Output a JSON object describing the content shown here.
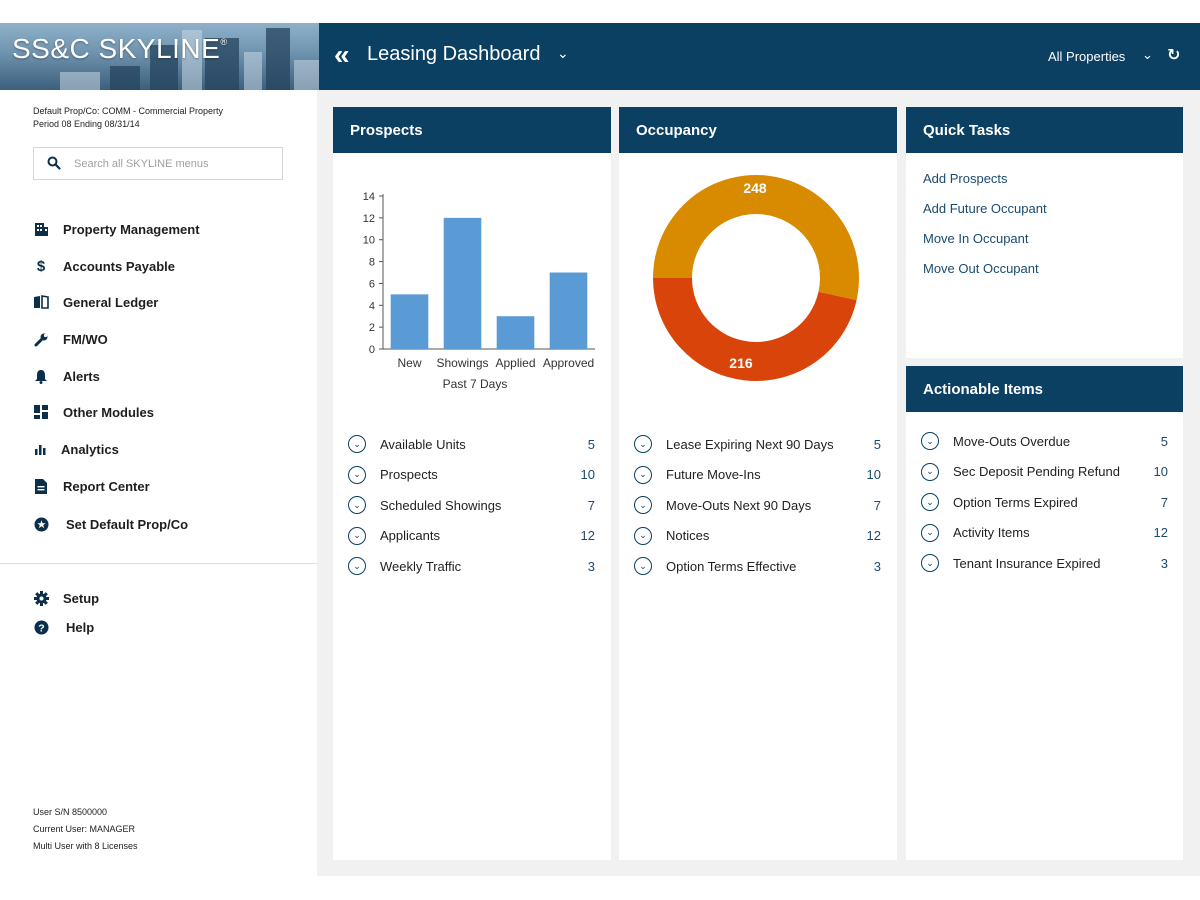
{
  "app": {
    "logo_text": "SS&C SKYLINE",
    "logo_mark": "®",
    "dashboard_title": "Leasing Dashboard",
    "property_selector": "All Properties"
  },
  "sidebar": {
    "default_prop_line": "Default Prop/Co: COMM - Commercial Property",
    "period_line": "Period 08 Ending 08/31/14",
    "search_placeholder": "Search all SKYLINE menus",
    "items": [
      {
        "label": "Property Management",
        "icon": "building-icon"
      },
      {
        "label": "Accounts Payable",
        "icon": "dollar-icon"
      },
      {
        "label": "General Ledger",
        "icon": "book-icon"
      },
      {
        "label": "FM/WO",
        "icon": "wrench-icon"
      },
      {
        "label": "Alerts",
        "icon": "bell-icon"
      },
      {
        "label": "Other Modules",
        "icon": "modules-icon"
      },
      {
        "label": "Analytics",
        "icon": "bar-chart-icon"
      },
      {
        "label": "Report Center",
        "icon": "document-icon"
      },
      {
        "label": "Set Default Prop/Co",
        "icon": "star-circle-icon"
      }
    ],
    "bottom_items": [
      {
        "label": "Setup",
        "icon": "gear-icon"
      },
      {
        "label": "Help",
        "icon": "help-icon"
      }
    ],
    "user_sn": "User S/N 8500000",
    "current_user": "Current User: MANAGER",
    "license": "Multi User with 8 Licenses"
  },
  "prospects": {
    "title": "Prospects",
    "rows": [
      {
        "label": "Available Units",
        "count": "5"
      },
      {
        "label": "Prospects",
        "count": "10"
      },
      {
        "label": "Scheduled Showings",
        "count": "7"
      },
      {
        "label": "Applicants",
        "count": "12"
      },
      {
        "label": "Weekly Traffic",
        "count": "3"
      }
    ]
  },
  "occupancy": {
    "title": "Occupancy",
    "rows": [
      {
        "label": "Lease Expiring Next 90 Days",
        "count": "5"
      },
      {
        "label": "Future Move-Ins",
        "count": "10"
      },
      {
        "label": "Move-Outs Next 90 Days",
        "count": "7"
      },
      {
        "label": "Notices",
        "count": "12"
      },
      {
        "label": "Option Terms Effective",
        "count": "3"
      }
    ]
  },
  "quick_tasks": {
    "title": "Quick Tasks",
    "links": [
      "Add Prospects",
      "Add Future Occupant",
      "Move In Occupant",
      "Move Out Occupant"
    ]
  },
  "actionable": {
    "title": "Actionable Items",
    "rows": [
      {
        "label": "Move-Outs Overdue",
        "count": "5"
      },
      {
        "label": "Sec Deposit Pending Refund",
        "count": "10"
      },
      {
        "label": "Option Terms Expired",
        "count": "7"
      },
      {
        "label": "Activity Items",
        "count": "12"
      },
      {
        "label": "Tenant Insurance Expired",
        "count": "3"
      }
    ]
  },
  "colors": {
    "header_navy": "#0b4063",
    "bar_blue": "#5b9bd5",
    "donut_orange": "#d98b00",
    "donut_red": "#d9440b",
    "link_blue": "#1a4b70"
  },
  "chart_data": [
    {
      "type": "bar",
      "categories": [
        "New",
        "Showings",
        "Applied",
        "Approved"
      ],
      "values": [
        5,
        12,
        3,
        7
      ],
      "xlabel": "Past 7 Days",
      "ylabel": "",
      "ylim": [
        0,
        14
      ],
      "yticks": [
        0,
        2,
        4,
        6,
        8,
        10,
        12,
        14
      ]
    },
    {
      "type": "pie",
      "donut": true,
      "labels": [
        "248",
        "216"
      ],
      "values": [
        248,
        216
      ]
    }
  ]
}
